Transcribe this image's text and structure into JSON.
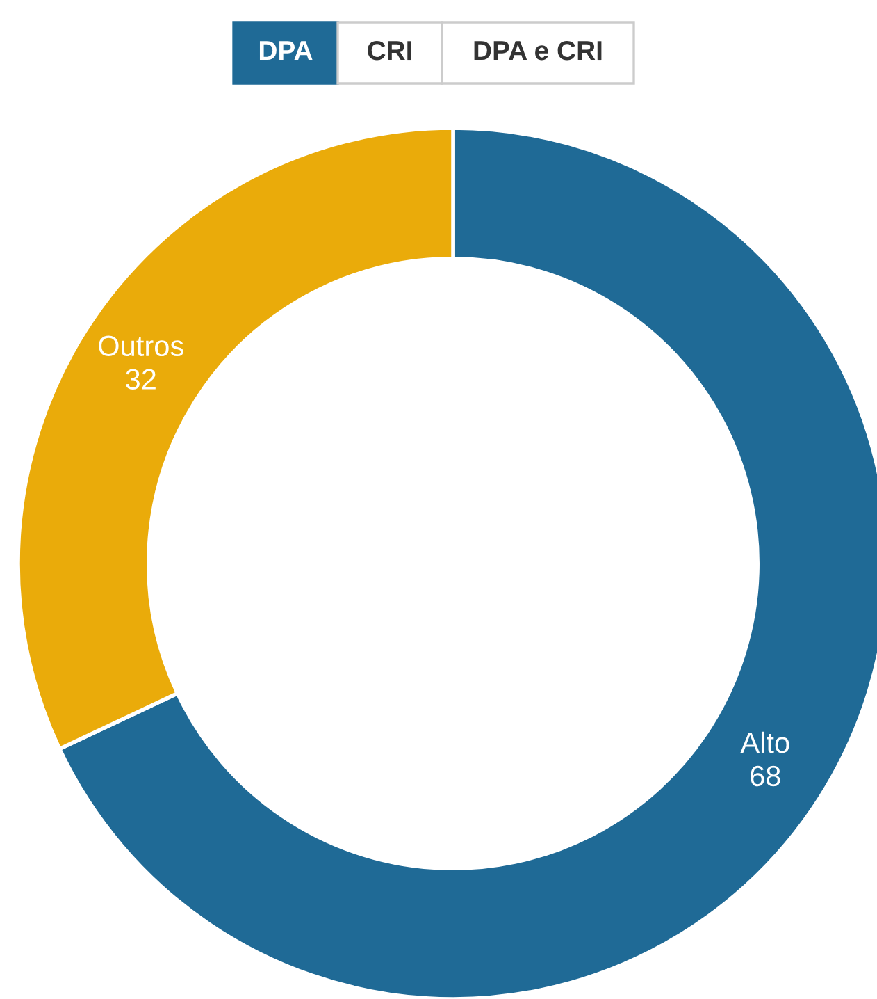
{
  "chart_data": {
    "type": "donut",
    "categories": [
      "Alto",
      "Outros"
    ],
    "values": [
      68,
      32
    ],
    "colors": [
      "#1f6a96",
      "#eaab0a"
    ],
    "data_labels": true,
    "annotations": [
      "DPA",
      "CRI",
      "DPA e CRI"
    ]
  }
}
